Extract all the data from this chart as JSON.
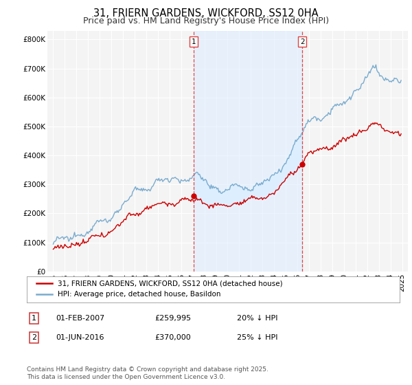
{
  "title_line1": "31, FRIERN GARDENS, WICKFORD, SS12 0HA",
  "title_line2": "Price paid vs. HM Land Registry's House Price Index (HPI)",
  "ylabel_ticks": [
    "£0",
    "£100K",
    "£200K",
    "£300K",
    "£400K",
    "£500K",
    "£600K",
    "£700K",
    "£800K"
  ],
  "ytick_values": [
    0,
    100000,
    200000,
    300000,
    400000,
    500000,
    600000,
    700000,
    800000
  ],
  "ylim": [
    0,
    830000
  ],
  "xlim_start": 1994.5,
  "xlim_end": 2025.5,
  "vline1_x": 2007.083,
  "vline2_x": 2016.417,
  "sale1_price": 259995,
  "sale1_date": "01-FEB-2007",
  "sale1_hpi_pct": "20% ↓ HPI",
  "sale2_price": 370000,
  "sale2_date": "01-JUN-2016",
  "sale2_hpi_pct": "25% ↓ HPI",
  "line_red_color": "#cc0000",
  "line_blue_color": "#7aabce",
  "vline_color": "#dd4444",
  "fill_color": "#ddeeff",
  "legend_label_red": "31, FRIERN GARDENS, WICKFORD, SS12 0HA (detached house)",
  "legend_label_blue": "HPI: Average price, detached house, Basildon",
  "footer": "Contains HM Land Registry data © Crown copyright and database right 2025.\nThis data is licensed under the Open Government Licence v3.0.",
  "background_color": "#ffffff",
  "plot_bg_color": "#f4f4f4",
  "grid_color": "#ffffff",
  "title_fontsize": 10.5,
  "subtitle_fontsize": 9,
  "tick_fontsize": 7.5,
  "legend_fontsize": 7.5,
  "annotation_fontsize": 8,
  "footer_fontsize": 6.5
}
